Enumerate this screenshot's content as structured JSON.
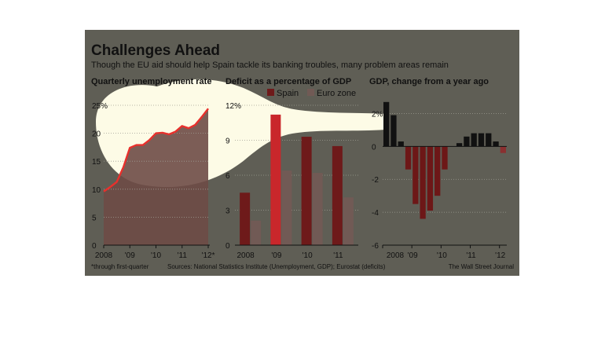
{
  "header": {
    "title": "Challenges Ahead",
    "subtitle": "Though the EU aid should help Spain tackle its banking troubles, many problem areas remain"
  },
  "footer": {
    "note": "*through first-quarter",
    "sources": "Sources: National Statistics Institute (Unemployment, GDP); Eurostat (deficits)",
    "credit": "The Wall Street Journal"
  },
  "colors": {
    "panel_bg": "#5f5e55",
    "highlight": "#fdfbe6",
    "spain": "#6e1a1a",
    "spain_highlighted": "#c9272b",
    "eurozone": "#715a55",
    "unemployment_line": "#e8302c",
    "unemployment_area": "#6e4b46",
    "gdp_positive": "#111111",
    "gdp_negative": "#6d1717",
    "gdp_negative_late": "#8a3030",
    "text": "#111111",
    "grid": "#9e9d93"
  },
  "chart_data": [
    {
      "type": "area",
      "title": "Quarterly unemployment rate",
      "unit_label": "%",
      "x_ticks": [
        "2008",
        "'09",
        "'10",
        "'11",
        "'12*"
      ],
      "y_ticks": [
        "25%",
        "20",
        "15",
        "10",
        "5",
        "0"
      ],
      "ylim": [
        0,
        25
      ],
      "grid": true,
      "series": [
        {
          "x": [
            "2008 Q1",
            "2008 Q2",
            "2008 Q3",
            "2008 Q4",
            "2009 Q1",
            "2009 Q2",
            "2009 Q3",
            "2009 Q4",
            "2010 Q1",
            "2010 Q2",
            "2010 Q3",
            "2010 Q4",
            "2011 Q1",
            "2011 Q2",
            "2011 Q3",
            "2011 Q4",
            "2012 Q1"
          ],
          "values": [
            9.6,
            10.4,
            11.3,
            13.9,
            17.4,
            17.9,
            17.9,
            18.8,
            20.0,
            20.1,
            19.8,
            20.3,
            21.3,
            20.9,
            21.5,
            22.9,
            24.4
          ]
        }
      ]
    },
    {
      "type": "bar",
      "title": "Deficit as a percentage of GDP",
      "categories": [
        "2008",
        "'09",
        "'10",
        "'11"
      ],
      "y_ticks": [
        "12%",
        "9",
        "6",
        "3",
        "0"
      ],
      "ylim": [
        0,
        12
      ],
      "legend": "top",
      "grid": true,
      "series": [
        {
          "name": "Spain",
          "values": [
            4.5,
            11.2,
            9.3,
            8.5
          ]
        },
        {
          "name": "Euro zone",
          "values": [
            2.1,
            6.4,
            6.2,
            4.1
          ]
        }
      ]
    },
    {
      "type": "bar",
      "title": "GDP, change from a year ago",
      "x_ticks": [
        "2008",
        "'09",
        "'10",
        "'11",
        "'12"
      ],
      "y_ticks": [
        "2%",
        "0",
        "-2",
        "-4",
        "-6"
      ],
      "ylim": [
        -6,
        2.5
      ],
      "grid": true,
      "series": [
        {
          "x": [
            "2008 Q1",
            "2008 Q2",
            "2008 Q3",
            "2008 Q4",
            "2009 Q1",
            "2009 Q2",
            "2009 Q3",
            "2009 Q4",
            "2010 Q1",
            "2010 Q2",
            "2010 Q3",
            "2010 Q4",
            "2011 Q1",
            "2011 Q2",
            "2011 Q3",
            "2011 Q4",
            "2012 Q1"
          ],
          "values": [
            2.7,
            1.9,
            0.3,
            -1.4,
            -3.5,
            -4.4,
            -3.9,
            -3.0,
            -1.4,
            0.0,
            0.2,
            0.6,
            0.8,
            0.8,
            0.8,
            0.3,
            -0.4
          ]
        }
      ]
    }
  ]
}
